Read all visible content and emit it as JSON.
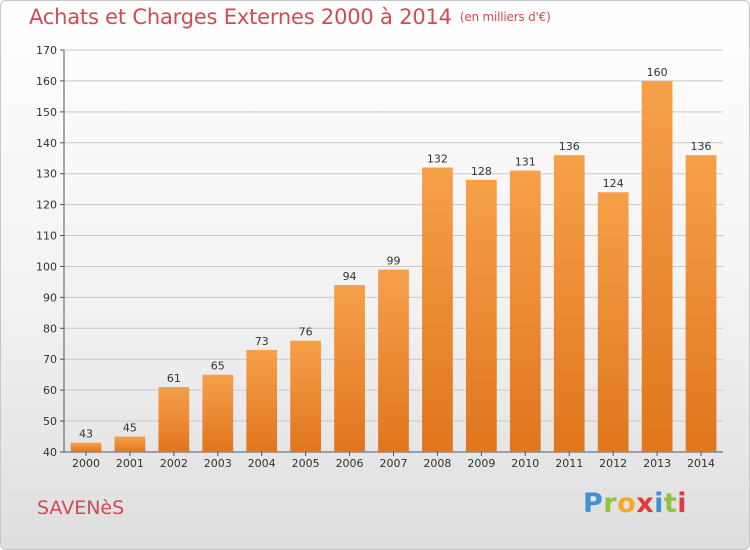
{
  "header": {
    "title": "Achats et Charges Externes 2000 à 2014",
    "unit": "(en milliers d'€)"
  },
  "commune": "SAVENèS",
  "logo": {
    "letters": [
      "P",
      "r",
      "o",
      "x",
      "i",
      "t",
      "i"
    ],
    "colors": [
      "#3d8fd6",
      "#8cc63f",
      "#f7a823",
      "#e23a3a",
      "#3d8fd6",
      "#8cc63f",
      "#e23a3a"
    ]
  },
  "colors": {
    "bar_light": "#f6a04a",
    "bar_dark": "#e0761e",
    "title": "#d14a55"
  },
  "chart_data": {
    "type": "bar",
    "categories": [
      "2000",
      "2001",
      "2002",
      "2003",
      "2004",
      "2005",
      "2006",
      "2007",
      "2008",
      "2009",
      "2010",
      "2011",
      "2012",
      "2013",
      "2014"
    ],
    "values": [
      43,
      45,
      61,
      65,
      73,
      76,
      94,
      99,
      132,
      128,
      131,
      136,
      124,
      160,
      136
    ],
    "title": "Achats et Charges Externes 2000 à 2014",
    "ylim": [
      40,
      170
    ],
    "yticks": [
      40,
      50,
      60,
      70,
      80,
      90,
      100,
      110,
      120,
      130,
      140,
      150,
      160,
      170
    ],
    "grid": true,
    "data_labels": true
  }
}
